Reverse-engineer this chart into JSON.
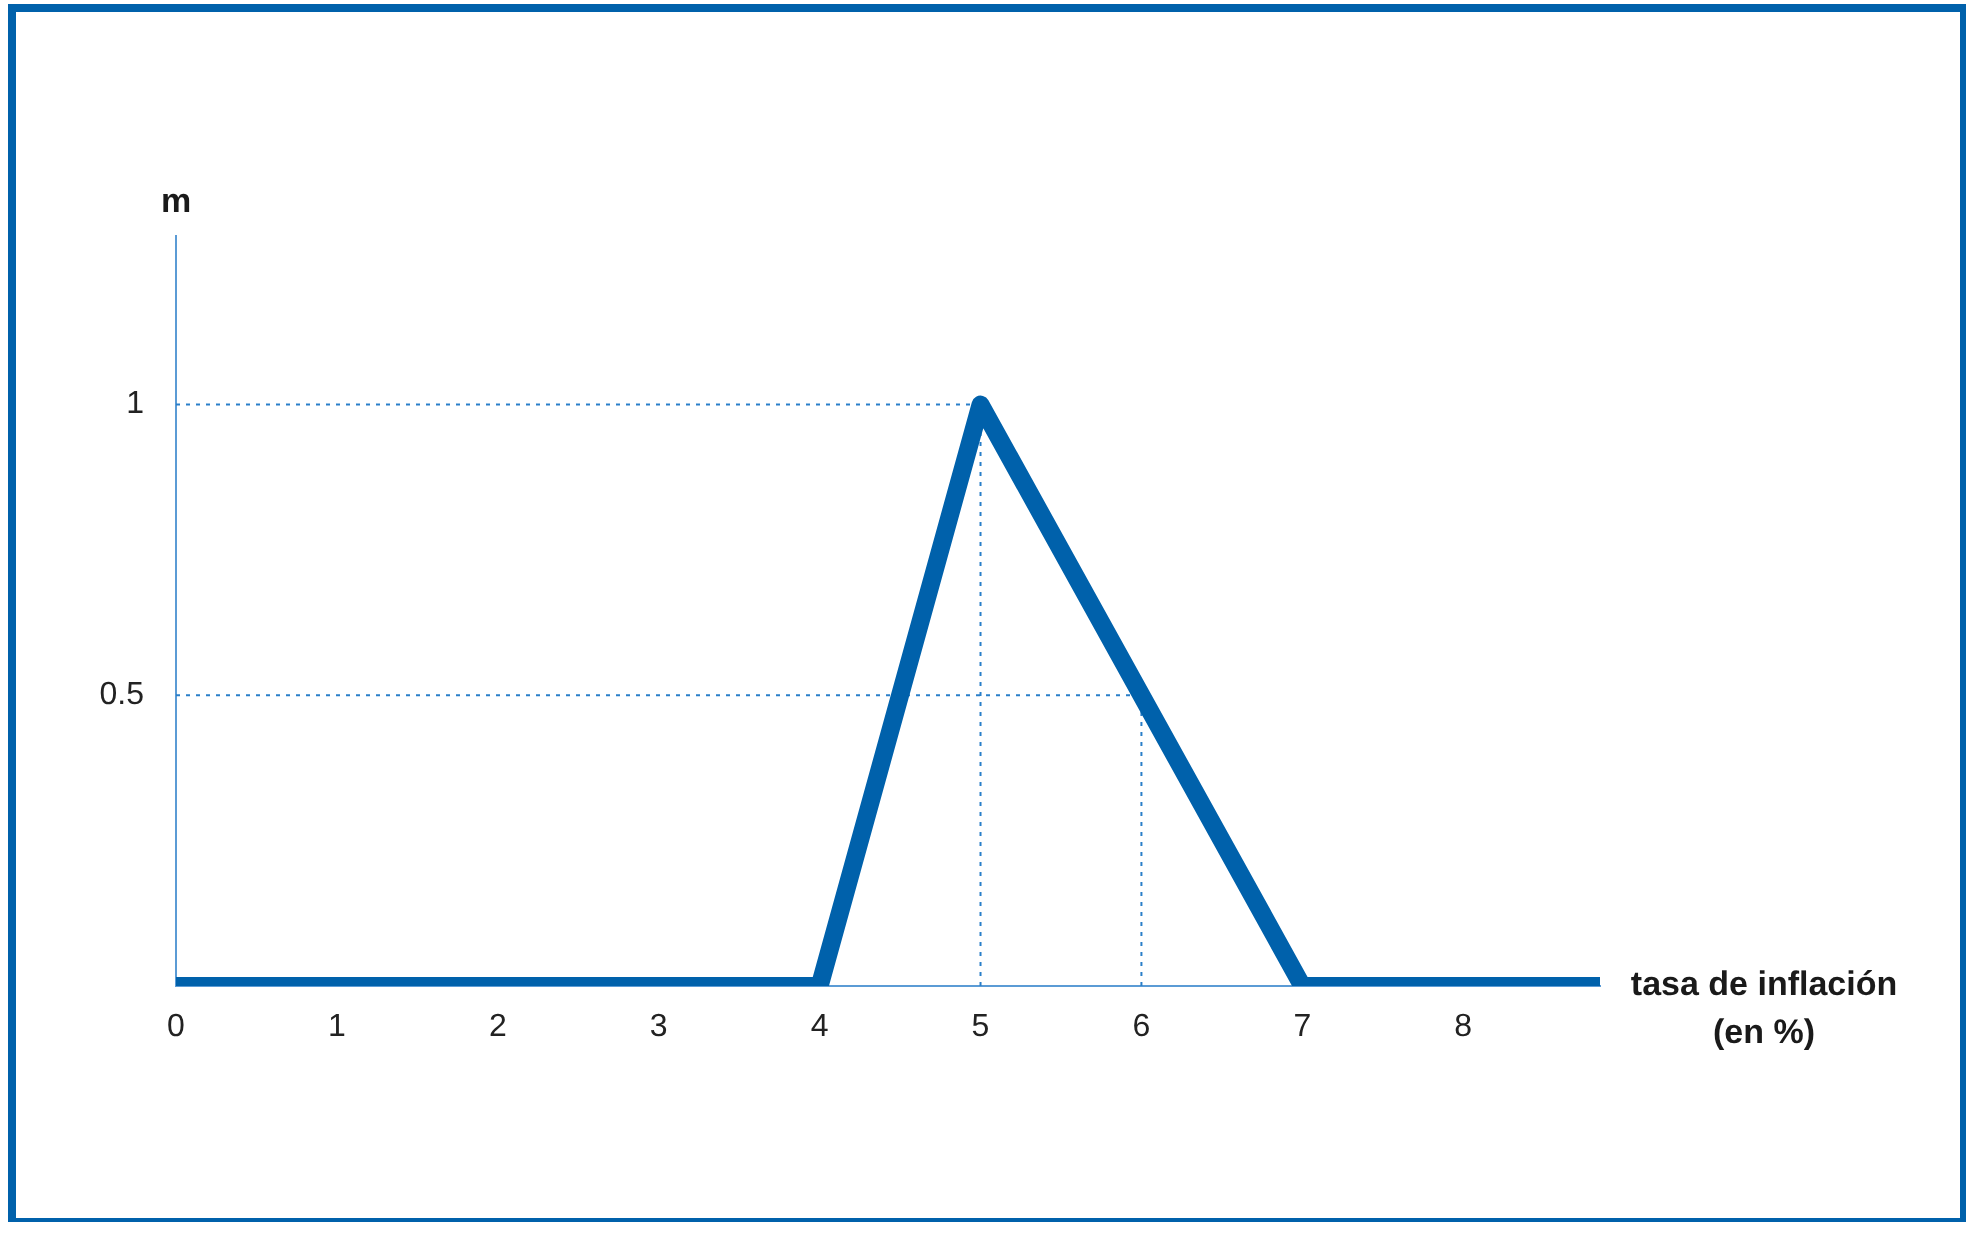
{
  "chart_data": {
    "type": "line",
    "ylabel": "m",
    "xlabel": "tasa de inflación\n(en %)",
    "x": [
      0,
      4,
      5,
      7,
      8.85
    ],
    "series": [
      {
        "color": "#0061ab",
        "values": [
          0,
          0,
          1,
          0,
          0
        ]
      }
    ],
    "xlim": [
      0,
      8.85
    ],
    "xticks": [
      0,
      1,
      2,
      3,
      4,
      5,
      6,
      7,
      8
    ],
    "ylim": [
      0,
      1.29
    ],
    "yticks": [
      0.5,
      1
    ],
    "ref_lines": [
      {
        "axis": "y",
        "value": 1,
        "color": "#2a7fc9",
        "line_style": "dotted"
      },
      {
        "axis": "y",
        "value": 0.5,
        "color": "#2a7fc9",
        "line_style": "dotted"
      },
      {
        "axis": "x",
        "value": 5,
        "color": "#2a7fc9",
        "line_style": "dotted"
      },
      {
        "axis": "x",
        "value": 6,
        "color": "#2a7fc9",
        "line_style": "dotted"
      }
    ],
    "marker": "none",
    "line_style": "solid",
    "grid": false,
    "legend": false
  }
}
